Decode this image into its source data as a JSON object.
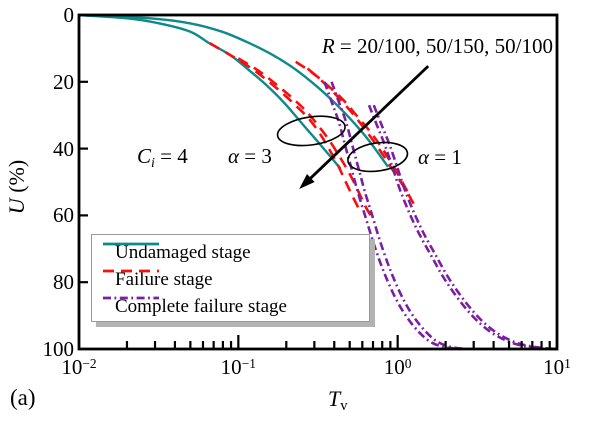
{
  "figure_label": "(a)",
  "colors": {
    "teal": "#0e8a8a",
    "red": "#f50f0f",
    "purple": "#7b1fa2",
    "axis": "#000000",
    "legend_border": "#999999",
    "legend_shadow": "#b3b3b3"
  },
  "axes": {
    "x": {
      "label_var": "T",
      "label_sub": "v",
      "scale": "log",
      "ticks": [
        {
          "base": "10",
          "exp": "−2"
        },
        {
          "base": "10",
          "exp": "−1"
        },
        {
          "base": "10",
          "exp": "0"
        },
        {
          "base": "10",
          "exp": "1"
        }
      ],
      "tick_exponents": [
        -2,
        -1,
        0,
        1
      ]
    },
    "y": {
      "label_var": "U",
      "label_rest": " (%)",
      "inverted": true,
      "ticks": [
        0,
        20,
        40,
        60,
        80,
        100
      ]
    }
  },
  "annotations": {
    "r": {
      "var": "R",
      "rest": " = 20/100, 50/150, 50/100"
    },
    "ci": {
      "var": "C",
      "sub": "i",
      "rest": " = 4"
    },
    "alpha3": {
      "var": "α",
      "rest": " = 3"
    },
    "alpha1": {
      "var": "α",
      "rest": " = 1"
    }
  },
  "legend": {
    "items": [
      {
        "label": "Undamaged stage",
        "color": "teal",
        "style": "solid"
      },
      {
        "label": "Failure stage",
        "color": "red",
        "style": "dashed"
      },
      {
        "label": "Complete failure stage",
        "color": "purple",
        "style": "dashdot"
      }
    ]
  },
  "chart_data": {
    "type": "line",
    "xlabel": "Tv",
    "ylabel": "U (%)",
    "xscale": "log",
    "xlim": [
      0.01,
      10
    ],
    "ylim": [
      0,
      100
    ],
    "y_axis_inverted": true,
    "grid": false,
    "legend_position": "lower-left",
    "series": [
      {
        "name": "undamaged-alpha3",
        "stage": "Undamaged stage",
        "alpha": 3,
        "color": "teal",
        "style": "solid",
        "width": 2.4,
        "points": [
          [
            0.01,
            0
          ],
          [
            0.02,
            1
          ],
          [
            0.032,
            2.5
          ],
          [
            0.05,
            5
          ],
          [
            0.066,
            8.5
          ],
          [
            0.089,
            12
          ],
          [
            0.12,
            17
          ],
          [
            0.158,
            22
          ],
          [
            0.2,
            27
          ],
          [
            0.251,
            32.5
          ],
          [
            0.316,
            38
          ],
          [
            0.38,
            42.5
          ],
          [
            0.437,
            46
          ]
        ]
      },
      {
        "name": "undamaged-alpha1",
        "stage": "Undamaged stage",
        "alpha": 1,
        "color": "teal",
        "style": "solid",
        "width": 2.4,
        "points": [
          [
            0.01,
            0
          ],
          [
            0.028,
            1
          ],
          [
            0.05,
            2.5
          ],
          [
            0.079,
            5
          ],
          [
            0.112,
            8
          ],
          [
            0.158,
            11.5
          ],
          [
            0.209,
            15
          ],
          [
            0.263,
            18.5
          ],
          [
            0.331,
            22.5
          ],
          [
            0.417,
            27
          ],
          [
            0.525,
            32
          ],
          [
            0.646,
            37
          ],
          [
            0.759,
            41.5
          ],
          [
            0.871,
            45.5
          ]
        ]
      },
      {
        "name": "failure-alpha3-r1",
        "stage": "Failure stage",
        "alpha": 3,
        "color": "red",
        "style": "dashed",
        "width": 2.6,
        "points": [
          [
            0.066,
            8.4
          ],
          [
            0.089,
            12
          ],
          [
            0.117,
            15.5
          ],
          [
            0.151,
            19.5
          ],
          [
            0.19,
            23.5
          ],
          [
            0.234,
            27.5
          ],
          [
            0.282,
            31.5
          ],
          [
            0.335,
            36.5
          ],
          [
            0.38,
            41
          ],
          [
            0.422,
            45
          ],
          [
            0.462,
            49
          ],
          [
            0.5,
            52.5
          ],
          [
            0.537,
            55.5
          ],
          [
            0.57,
            58
          ]
        ]
      },
      {
        "name": "failure-alpha3-r2",
        "stage": "Failure stage",
        "alpha": 3,
        "color": "red",
        "style": "dashed",
        "width": 2.6,
        "points": [
          [
            0.1,
            13
          ],
          [
            0.132,
            16.5
          ],
          [
            0.17,
            20.5
          ],
          [
            0.214,
            24.5
          ],
          [
            0.263,
            28.5
          ],
          [
            0.316,
            33
          ],
          [
            0.372,
            37.5
          ],
          [
            0.427,
            42
          ],
          [
            0.479,
            46
          ],
          [
            0.531,
            50
          ],
          [
            0.582,
            54
          ],
          [
            0.631,
            57.5
          ],
          [
            0.676,
            60
          ]
        ]
      },
      {
        "name": "failure-alpha1-r1",
        "stage": "Failure stage",
        "alpha": 1,
        "color": "red",
        "style": "dashed",
        "width": 2.6,
        "points": [
          [
            0.229,
            14
          ],
          [
            0.295,
            17.5
          ],
          [
            0.372,
            21.5
          ],
          [
            0.457,
            25.5
          ],
          [
            0.55,
            30
          ],
          [
            0.661,
            34.5
          ],
          [
            0.776,
            39
          ],
          [
            0.891,
            43.5
          ],
          [
            1.0,
            47.5
          ],
          [
            1.096,
            51
          ],
          [
            1.189,
            54
          ]
        ]
      },
      {
        "name": "failure-alpha1-r2",
        "stage": "Failure stage",
        "alpha": 1,
        "color": "red",
        "style": "dashed",
        "width": 2.6,
        "points": [
          [
            0.272,
            16
          ],
          [
            0.339,
            20
          ],
          [
            0.412,
            24
          ],
          [
            0.501,
            28.5
          ],
          [
            0.596,
            33
          ],
          [
            0.7,
            37.5
          ],
          [
            0.813,
            42
          ],
          [
            0.933,
            46.5
          ],
          [
            1.047,
            50
          ],
          [
            1.161,
            53.5
          ],
          [
            1.259,
            56.5
          ]
        ]
      },
      {
        "name": "complete-failure-alpha3-r1",
        "stage": "Complete failure stage",
        "alpha": 3,
        "color": "purple",
        "style": "dashdot",
        "width": 2.6,
        "points": [
          [
            0.347,
            20
          ],
          [
            0.385,
            26
          ],
          [
            0.427,
            32
          ],
          [
            0.468,
            39
          ],
          [
            0.513,
            46
          ],
          [
            0.562,
            53
          ],
          [
            0.624,
            60
          ],
          [
            0.692,
            67
          ],
          [
            0.776,
            74
          ],
          [
            0.871,
            80
          ],
          [
            1.0,
            86
          ],
          [
            1.162,
            91
          ],
          [
            1.365,
            95
          ],
          [
            1.622,
            98
          ],
          [
            2.0,
            99.5
          ],
          [
            2.512,
            100
          ]
        ]
      },
      {
        "name": "complete-failure-alpha3-r2",
        "stage": "Complete failure stage",
        "alpha": 3,
        "color": "purple",
        "style": "dashdot",
        "width": 2.6,
        "points": [
          [
            0.385,
            20
          ],
          [
            0.427,
            26
          ],
          [
            0.474,
            32
          ],
          [
            0.519,
            39
          ],
          [
            0.569,
            46
          ],
          [
            0.623,
            53
          ],
          [
            0.692,
            60
          ],
          [
            0.767,
            67
          ],
          [
            0.861,
            74
          ],
          [
            0.966,
            80
          ],
          [
            1.109,
            86
          ],
          [
            1.288,
            91
          ],
          [
            1.514,
            95
          ],
          [
            1.799,
            98
          ],
          [
            2.218,
            99.5
          ],
          [
            2.786,
            100
          ]
        ]
      },
      {
        "name": "complete-failure-alpha1-r1",
        "stage": "Complete failure stage",
        "alpha": 1,
        "color": "purple",
        "style": "dashdot",
        "width": 2.6,
        "points": [
          [
            0.661,
            27
          ],
          [
            0.741,
            33
          ],
          [
            0.832,
            39
          ],
          [
            0.933,
            46
          ],
          [
            1.047,
            53
          ],
          [
            1.202,
            60
          ],
          [
            1.38,
            66
          ],
          [
            1.622,
            72
          ],
          [
            1.905,
            78
          ],
          [
            2.239,
            83
          ],
          [
            2.692,
            88
          ],
          [
            3.311,
            92.5
          ],
          [
            4.169,
            96
          ],
          [
            5.495,
            98.5
          ],
          [
            7.586,
            99.7
          ],
          [
            10,
            100
          ]
        ]
      },
      {
        "name": "complete-failure-alpha1-r2",
        "stage": "Complete failure stage",
        "alpha": 1,
        "color": "purple",
        "style": "dashdot",
        "width": 2.6,
        "points": [
          [
            0.708,
            27
          ],
          [
            0.794,
            33
          ],
          [
            0.892,
            39
          ],
          [
            1.0,
            46
          ],
          [
            1.122,
            53
          ],
          [
            1.288,
            60
          ],
          [
            1.479,
            66
          ],
          [
            1.738,
            72
          ],
          [
            2.042,
            78
          ],
          [
            2.4,
            83
          ],
          [
            2.884,
            88
          ],
          [
            3.548,
            92.5
          ],
          [
            4.467,
            96
          ],
          [
            5.888,
            98.5
          ],
          [
            8.128,
            99.7
          ],
          [
            10,
            100
          ]
        ]
      }
    ],
    "annotations_data": {
      "ellipse_alpha3": {
        "cx_tv": 0.287,
        "cy_u": 34.7,
        "rx": 34,
        "ry": 14,
        "rot": -8
      },
      "ellipse_alpha1": {
        "cx_tv": 0.749,
        "cy_u": 42.5,
        "rx": 30,
        "ry": 14,
        "rot": -8
      },
      "arrow": {
        "from_tv": 1.555,
        "from_u": 15.3,
        "to_tv": 0.241,
        "to_u": 52.1
      }
    }
  }
}
